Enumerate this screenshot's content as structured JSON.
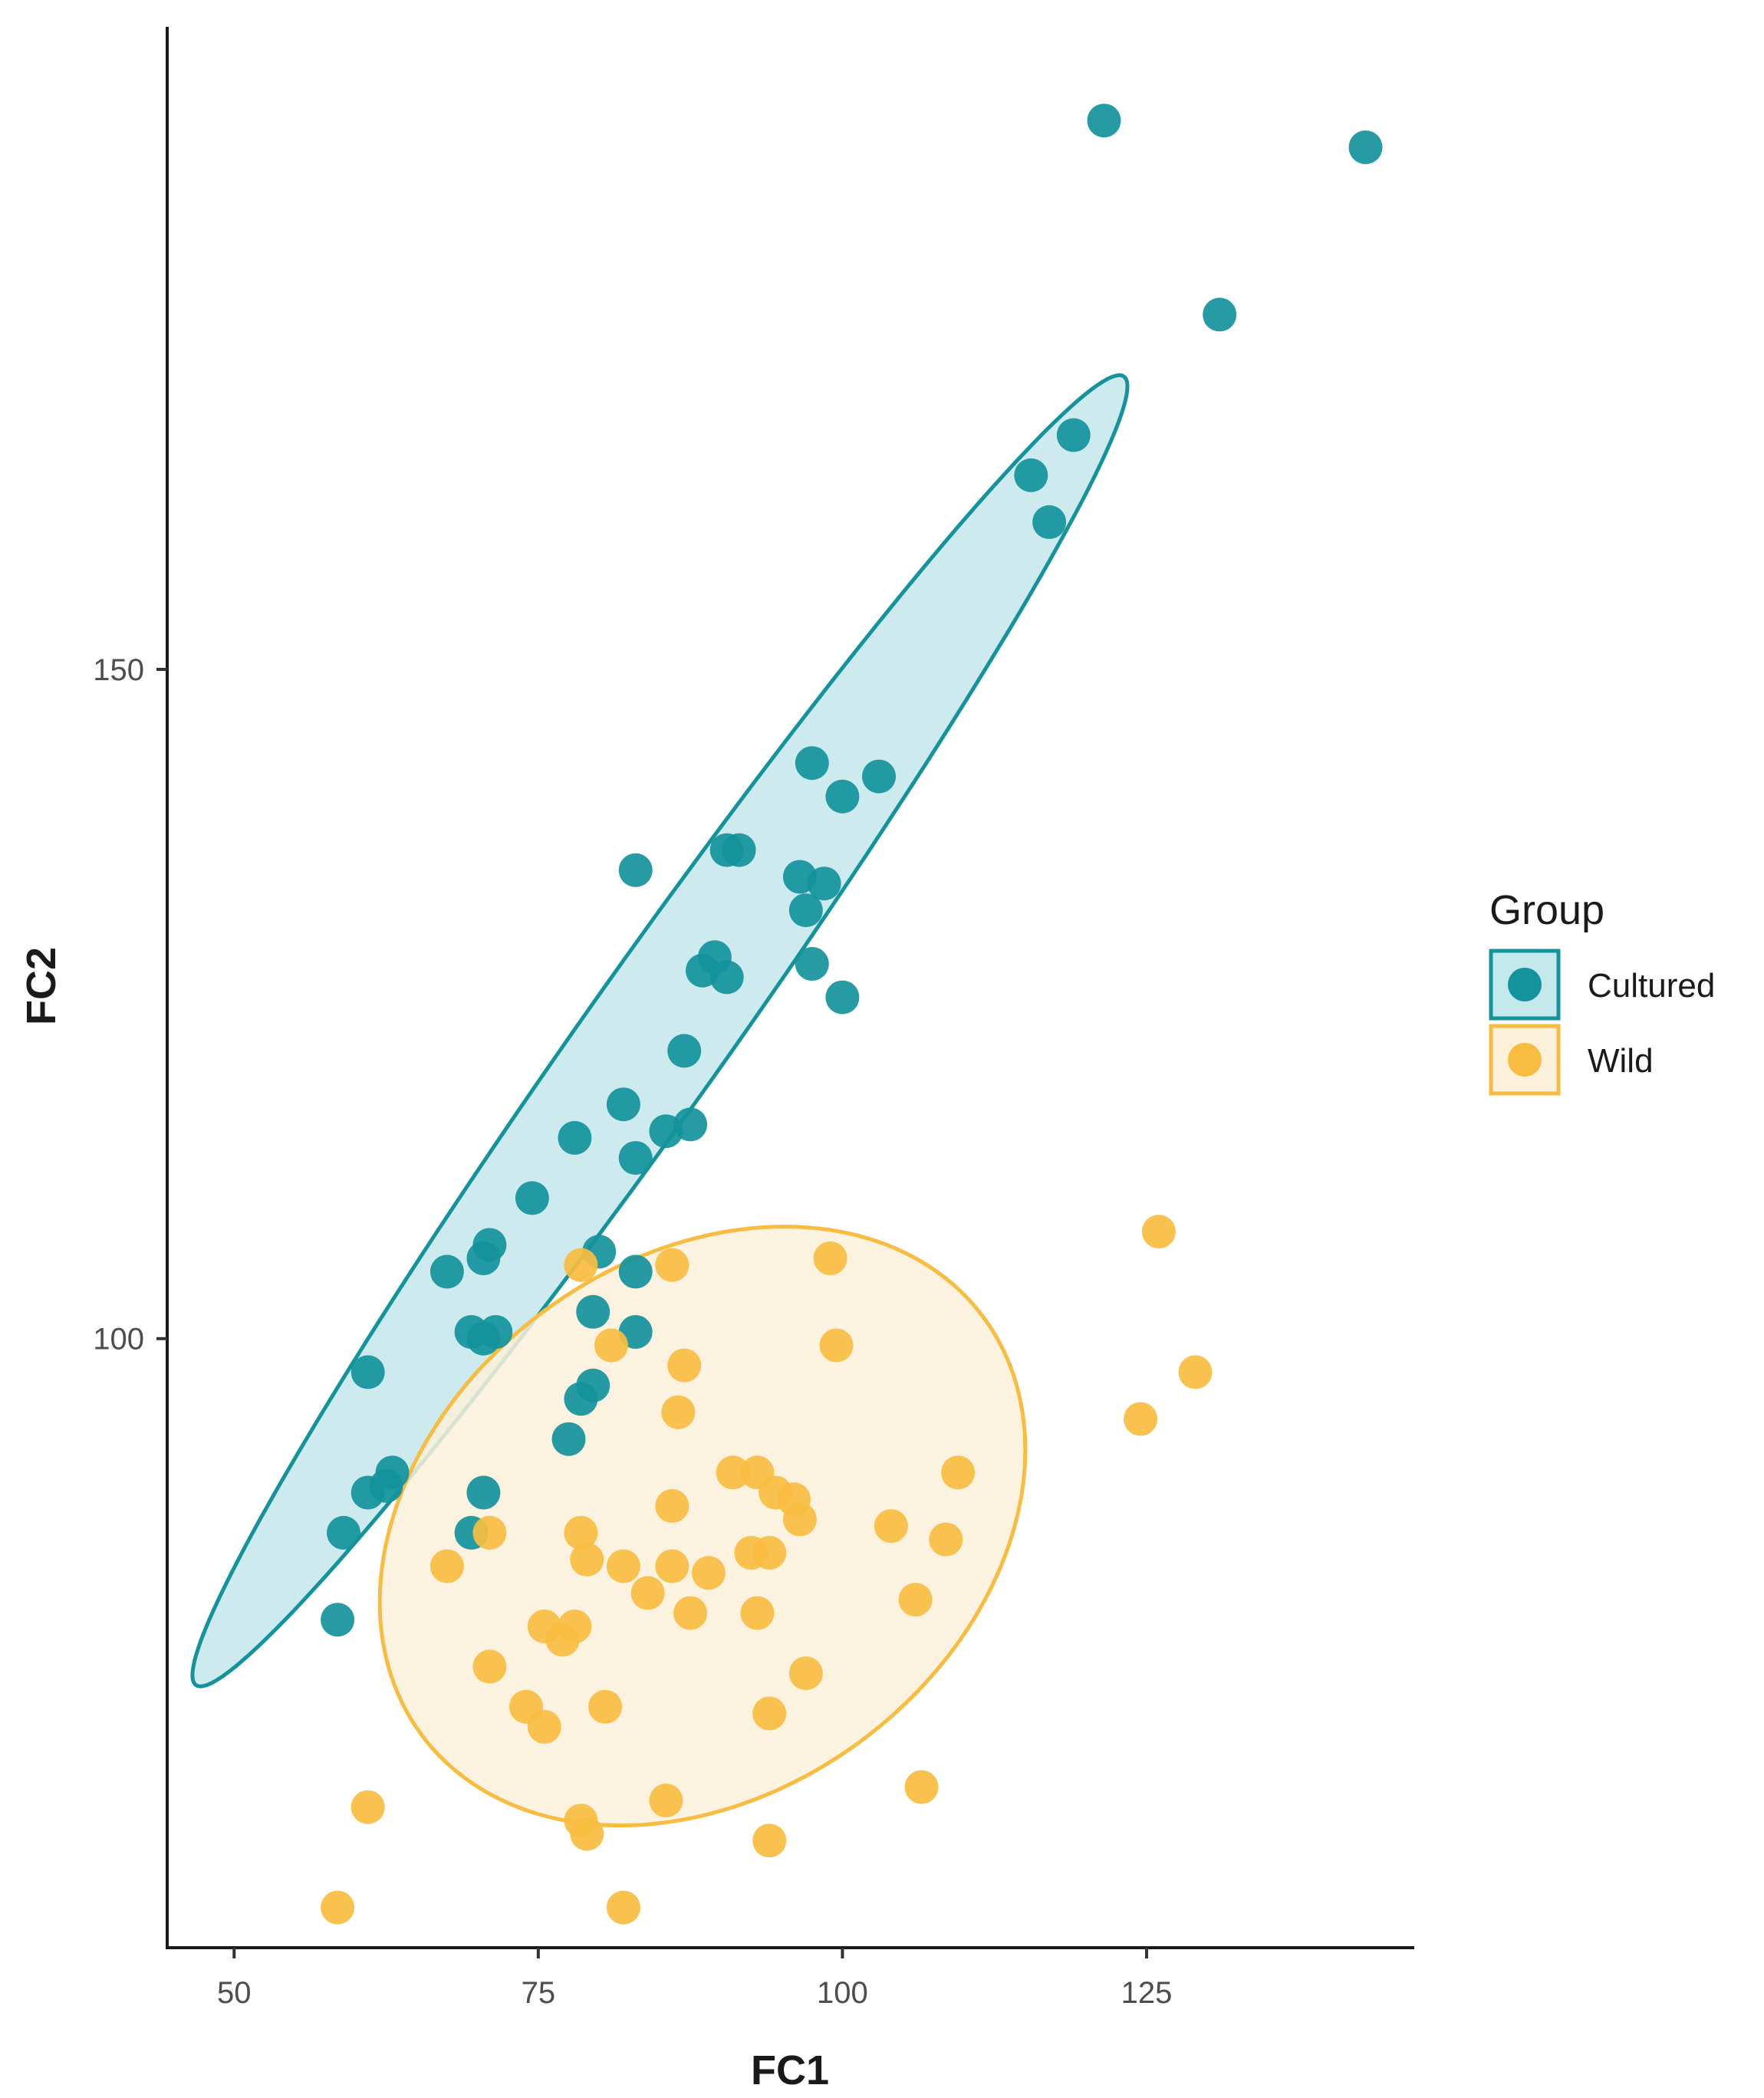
{
  "chart_data": {
    "type": "scatter",
    "title": "",
    "xlabel": "FC1",
    "ylabel": "FC2",
    "xlim": [
      44.5,
      147
    ],
    "ylim": [
      54.5,
      198
    ],
    "x_ticks": [
      50,
      75,
      100,
      125
    ],
    "x_tick_labels": [
      "50",
      "75",
      "100",
      "125"
    ],
    "y_ticks": [
      100,
      150
    ],
    "y_tick_labels": [
      "100",
      "150"
    ],
    "grid": false,
    "legend": {
      "title": "Group",
      "position": "right",
      "entries": [
        "Cultured",
        "Wild"
      ]
    },
    "series": [
      {
        "name": "Cultured",
        "color": "#14939c",
        "fill": "#c4e8ec",
        "ellipse": {
          "center": [
            85,
            123
          ],
          "semi_major": 62,
          "semi_minor": 5.6,
          "angle_deg": 52
        },
        "points": [
          [
            121.5,
            191
          ],
          [
            143,
            189
          ],
          [
            131,
            176.5
          ],
          [
            119,
            167.5
          ],
          [
            115.5,
            164.5
          ],
          [
            117,
            161
          ],
          [
            97.5,
            143
          ],
          [
            103,
            142
          ],
          [
            100,
            140.5
          ],
          [
            83,
            135
          ],
          [
            90.5,
            136.5
          ],
          [
            91.5,
            136.5
          ],
          [
            96.5,
            134.5
          ],
          [
            98.5,
            134
          ],
          [
            97,
            132
          ],
          [
            89.5,
            128.5
          ],
          [
            88.5,
            127.5
          ],
          [
            90.5,
            127
          ],
          [
            97.5,
            128
          ],
          [
            100,
            125.5
          ],
          [
            87,
            121.5
          ],
          [
            82,
            117.5
          ],
          [
            87.5,
            116
          ],
          [
            85.5,
            115.5
          ],
          [
            83,
            113.5
          ],
          [
            78,
            115
          ],
          [
            74.5,
            110.5
          ],
          [
            80,
            106.5
          ],
          [
            71,
            107
          ],
          [
            70.5,
            106
          ],
          [
            67.5,
            105
          ],
          [
            83,
            105
          ],
          [
            79.5,
            102
          ],
          [
            69.5,
            100.5
          ],
          [
            70.5,
            100
          ],
          [
            71.5,
            100.5
          ],
          [
            83,
            100.5
          ],
          [
            61,
            97.5
          ],
          [
            78.5,
            95.5
          ],
          [
            79.5,
            96.5
          ],
          [
            77.5,
            92.5
          ],
          [
            63,
            90
          ],
          [
            62.5,
            89
          ],
          [
            61,
            88.5
          ],
          [
            70.5,
            88.5
          ],
          [
            69.5,
            85.5
          ],
          [
            59,
            85.5
          ],
          [
            58.5,
            79
          ]
        ]
      },
      {
        "name": "Wild",
        "color": "#f8bd40",
        "fill": "#fcf0da",
        "ellipse": {
          "center": [
            88.5,
            86
          ],
          "semi_major": 28,
          "semi_minor": 20.5,
          "angle_deg": 28
        },
        "points": [
          [
            126,
            108
          ],
          [
            99,
            106
          ],
          [
            78.5,
            105.5
          ],
          [
            86,
            105.5
          ],
          [
            129,
            97.5
          ],
          [
            81,
            99.5
          ],
          [
            99.5,
            99.5
          ],
          [
            87,
            98
          ],
          [
            86.5,
            94.5
          ],
          [
            124.5,
            94
          ],
          [
            109.5,
            90
          ],
          [
            91,
            90
          ],
          [
            93,
            90
          ],
          [
            94.5,
            88.5
          ],
          [
            96,
            88
          ],
          [
            86,
            87.5
          ],
          [
            96.5,
            86.5
          ],
          [
            104,
            86
          ],
          [
            108.5,
            85
          ],
          [
            71,
            85.5
          ],
          [
            78.5,
            85.5
          ],
          [
            92.5,
            84
          ],
          [
            94,
            84
          ],
          [
            79,
            83.5
          ],
          [
            82,
            83
          ],
          [
            86,
            83
          ],
          [
            67.5,
            83
          ],
          [
            89,
            82.5
          ],
          [
            84,
            81
          ],
          [
            106,
            80.5
          ],
          [
            87.5,
            79.5
          ],
          [
            93,
            79.5
          ],
          [
            75.5,
            78.5
          ],
          [
            78,
            78.5
          ],
          [
            77,
            77.5
          ],
          [
            71,
            75.5
          ],
          [
            97,
            75
          ],
          [
            74,
            72.5
          ],
          [
            75.5,
            71
          ],
          [
            80.5,
            72.5
          ],
          [
            94,
            72
          ],
          [
            61,
            65
          ],
          [
            85.5,
            65.5
          ],
          [
            106.5,
            66.5
          ],
          [
            78.5,
            64
          ],
          [
            79,
            63
          ],
          [
            94,
            62.5
          ],
          [
            58.5,
            57.5
          ],
          [
            82,
            57.5
          ]
        ]
      }
    ]
  }
}
